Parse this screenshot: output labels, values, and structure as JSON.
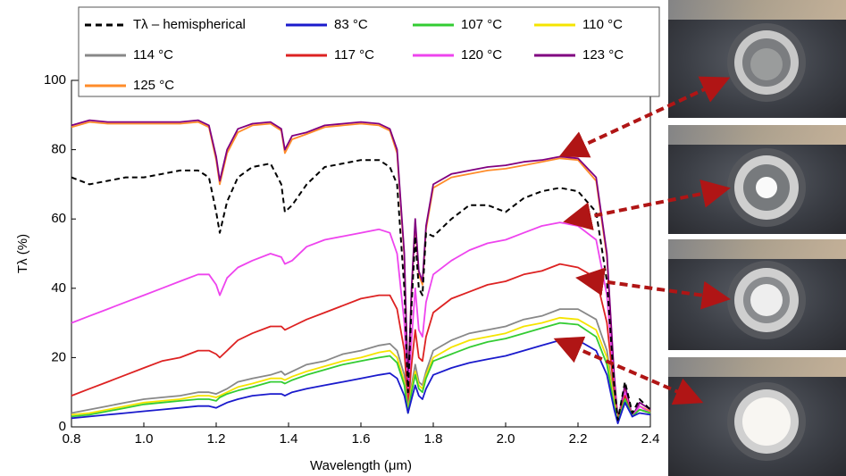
{
  "chart_data": {
    "type": "line",
    "xlabel": "Wavelength (μm)",
    "ylabel": "Tλ (%)",
    "xlim": [
      0.8,
      2.4
    ],
    "ylim": [
      0,
      100
    ],
    "xticks": [
      0.8,
      {
        "value": 1,
        "label": "1.0"
      },
      1.2,
      1.4,
      1.6,
      1.8,
      {
        "value": 2,
        "label": "2.0"
      },
      2.2,
      2.4
    ],
    "yticks": [
      0,
      20,
      40,
      60,
      80,
      100
    ],
    "x": [
      0.8,
      0.85,
      0.9,
      0.95,
      1.0,
      1.05,
      1.1,
      1.15,
      1.18,
      1.2,
      1.21,
      1.23,
      1.26,
      1.3,
      1.35,
      1.38,
      1.39,
      1.41,
      1.45,
      1.5,
      1.55,
      1.6,
      1.65,
      1.68,
      1.7,
      1.72,
      1.73,
      1.74,
      1.75,
      1.76,
      1.77,
      1.78,
      1.8,
      1.85,
      1.9,
      1.95,
      2.0,
      2.05,
      2.1,
      2.15,
      2.2,
      2.25,
      2.28,
      2.3,
      2.31,
      2.33,
      2.35,
      2.37,
      2.4
    ],
    "series": [
      {
        "name": "Tλ – hemispherical",
        "color": "#000000",
        "dash": true,
        "values": [
          72,
          70,
          71,
          72,
          72,
          73,
          74,
          74,
          72,
          62,
          56,
          65,
          72,
          75,
          76,
          70,
          62,
          64,
          70,
          75,
          76,
          77,
          77,
          75,
          70,
          40,
          10,
          35,
          55,
          40,
          38,
          56,
          55,
          60,
          64,
          64,
          62,
          66,
          68,
          69,
          68,
          62,
          42,
          12,
          2,
          13,
          4,
          8,
          5
        ]
      },
      {
        "name": "83 °C",
        "color": "#1a1acc",
        "values": [
          2.5,
          3,
          3.5,
          4,
          4.5,
          5,
          5.5,
          6,
          6,
          5.5,
          6,
          7,
          8,
          9,
          9.5,
          9.5,
          9,
          10,
          11,
          12,
          13,
          14,
          15,
          15.5,
          14,
          9,
          4,
          8,
          12,
          9,
          8,
          11,
          15,
          17,
          18.5,
          19.5,
          20.5,
          22,
          23.5,
          25,
          25,
          22,
          15,
          5,
          1,
          7,
          3,
          4,
          3.5
        ]
      },
      {
        "name": "107 °C",
        "color": "#33cc33",
        "values": [
          3,
          3.5,
          4.5,
          5.5,
          6.5,
          7,
          7.5,
          8,
          8,
          7.5,
          8.5,
          9.5,
          10.5,
          11.5,
          13,
          13,
          12.5,
          13.5,
          15,
          16.5,
          18,
          19,
          20,
          20.5,
          18.5,
          12,
          4,
          10,
          15,
          11,
          10,
          14,
          19,
          21,
          23,
          24.5,
          25.5,
          27,
          28.5,
          30,
          29.5,
          26,
          18,
          6,
          1.5,
          8,
          3,
          5,
          4
        ]
      },
      {
        "name": "110 °C",
        "color": "#f5e400",
        "values": [
          3.5,
          4,
          5,
          6,
          7,
          7.5,
          8,
          9,
          9,
          8.5,
          9,
          10,
          11.5,
          12.5,
          14,
          14,
          13.5,
          14.5,
          16,
          17.5,
          19,
          20,
          21.5,
          22,
          20,
          13,
          4.5,
          11,
          16,
          12,
          11,
          15,
          20,
          23,
          25,
          26,
          27,
          29,
          30,
          31.5,
          31,
          28,
          20,
          7,
          1.5,
          8,
          3,
          5,
          4
        ]
      },
      {
        "name": "114 °C",
        "color": "#888888",
        "values": [
          4,
          5,
          6,
          7,
          8,
          8.5,
          9,
          10,
          10,
          9.5,
          10,
          11,
          13,
          14,
          15,
          16,
          15,
          16,
          18,
          19,
          21,
          22,
          23.5,
          24,
          22,
          15,
          5,
          12,
          18,
          13,
          12,
          16,
          22,
          25,
          27,
          28,
          29,
          31,
          32,
          34,
          34,
          31,
          22,
          8,
          1.5,
          8,
          3,
          5,
          4
        ]
      },
      {
        "name": "117 °C",
        "color": "#dd2222",
        "values": [
          9,
          11,
          13,
          15,
          17,
          19,
          20,
          22,
          22,
          21,
          20,
          22,
          25,
          27,
          29,
          29,
          28,
          29,
          31,
          33,
          35,
          37,
          38,
          38,
          34,
          22,
          6,
          18,
          28,
          20,
          19,
          26,
          33,
          37,
          39,
          41,
          42,
          44,
          45,
          47,
          46,
          43,
          30,
          10,
          2,
          9,
          3,
          5,
          4
        ]
      },
      {
        "name": "120 °C",
        "color": "#ee44ee",
        "values": [
          30,
          32,
          34,
          36,
          38,
          40,
          42,
          44,
          44,
          41,
          38,
          43,
          46,
          48,
          50,
          49,
          47,
          48,
          52,
          54,
          55,
          56,
          57,
          56,
          50,
          30,
          8,
          25,
          40,
          28,
          26,
          36,
          44,
          48,
          51,
          53,
          54,
          56,
          58,
          59,
          58,
          54,
          38,
          12,
          2,
          10,
          3,
          6,
          4
        ]
      },
      {
        "name": "123 °C",
        "color": "#800080",
        "values": [
          87,
          88.5,
          88,
          88,
          88,
          88,
          88,
          88.5,
          87,
          78,
          71,
          80,
          86,
          87.5,
          88,
          86,
          80,
          84,
          85,
          87,
          87.5,
          88,
          87.5,
          86,
          80,
          50,
          12,
          40,
          60,
          45,
          42,
          58,
          70,
          73,
          74,
          75,
          75.5,
          76.5,
          77,
          78,
          77.5,
          72,
          50,
          15,
          2,
          12,
          3,
          7,
          5
        ]
      },
      {
        "name": "125 °C",
        "color": "#ff8c2a",
        "values": [
          86.5,
          88,
          87.5,
          87.5,
          87.5,
          87.5,
          87.5,
          88,
          86.5,
          77,
          70,
          79,
          85,
          87,
          87.5,
          85.5,
          79,
          83,
          84.5,
          86.5,
          87,
          87.5,
          87,
          85.5,
          79,
          49,
          12,
          39,
          59,
          44,
          41,
          57,
          69,
          72,
          73,
          74,
          74.5,
          75.5,
          76.5,
          77.5,
          77,
          71,
          49,
          14,
          2,
          11,
          3,
          6,
          4.5
        ]
      }
    ]
  }
}
